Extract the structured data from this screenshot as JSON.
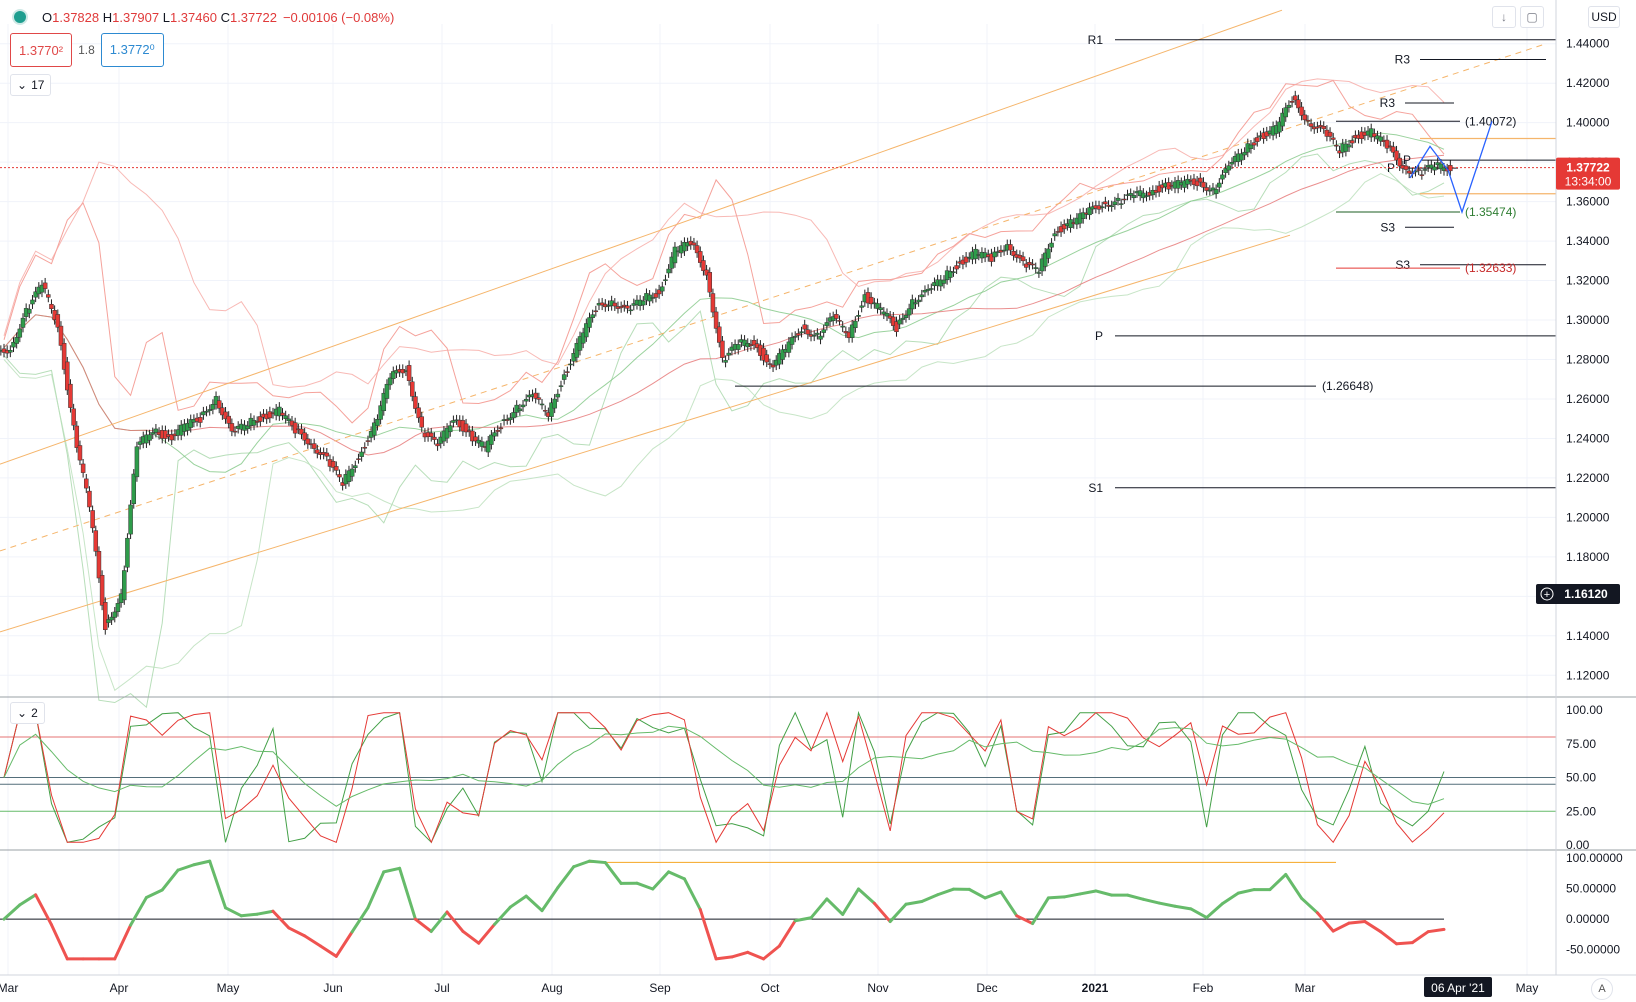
{
  "header": {
    "ohlc_o": "1.37828",
    "ohlc_h": "1.37907",
    "ohlc_l": "1.37460",
    "ohlc_c": "1.37722",
    "change": "−0.00106 (−0.08%)",
    "sell_price": "1.3770²",
    "spread": "1.8",
    "buy_price": "1.3772⁰",
    "indicator_count_main": "17",
    "indicator_count_osc": "2",
    "currency": "USD",
    "auto_label": "A"
  },
  "chart_data": {
    "type": "candlestick",
    "symbol_quote": "USD",
    "current_price": "1.37722",
    "countdown": "13:34:00",
    "crosshair_price": "1.16120",
    "crosshair_date": "06 Apr '21",
    "price_axis": {
      "ylim": [
        1.11,
        1.45
      ],
      "ticks": [
        "1.44000",
        "1.42000",
        "1.40000",
        "1.38000",
        "1.36000",
        "1.34000",
        "1.32000",
        "1.30000",
        "1.28000",
        "1.26000",
        "1.24000",
        "1.22000",
        "1.20000",
        "1.18000",
        "1.16000",
        "1.14000",
        "1.12000"
      ]
    },
    "time_axis": {
      "labels": [
        "Mar",
        "Apr",
        "May",
        "Jun",
        "Jul",
        "Aug",
        "Sep",
        "Oct",
        "Nov",
        "Dec",
        "2021",
        "Feb",
        "Mar",
        "May"
      ]
    },
    "weekly_close": [
      1.286,
      1.304,
      1.318,
      1.298,
      1.245,
      1.205,
      1.145,
      1.16,
      1.235,
      1.245,
      1.24,
      1.246,
      1.25,
      1.261,
      1.242,
      1.248,
      1.251,
      1.254,
      1.244,
      1.238,
      1.229,
      1.217,
      1.231,
      1.246,
      1.271,
      1.276,
      1.244,
      1.236,
      1.251,
      1.242,
      1.235,
      1.247,
      1.256,
      1.261,
      1.253,
      1.272,
      1.29,
      1.306,
      1.31,
      1.304,
      1.311,
      1.314,
      1.335,
      1.339,
      1.324,
      1.279,
      1.288,
      1.289,
      1.276,
      1.285,
      1.296,
      1.292,
      1.301,
      1.293,
      1.312,
      1.305,
      1.296,
      1.31,
      1.314,
      1.322,
      1.329,
      1.334,
      1.331,
      1.339,
      1.328,
      1.325,
      1.345,
      1.349,
      1.354,
      1.359,
      1.36,
      1.363,
      1.365,
      1.368,
      1.369,
      1.37,
      1.366,
      1.377,
      1.387,
      1.393,
      1.397,
      1.412,
      1.401,
      1.395,
      1.386,
      1.393,
      1.395,
      1.388,
      1.378,
      1.374,
      1.378,
      1.3772
    ],
    "levels": [
      {
        "label": "R1",
        "value": 1.442
      },
      {
        "label": "R3",
        "value": 1.432
      },
      {
        "label": "R3",
        "value": 1.41
      },
      {
        "label": "(1.40072)",
        "value": 1.40072
      },
      {
        "label": "P",
        "value": 1.381
      },
      {
        "label": "P",
        "value": 1.377
      },
      {
        "label": "(1.35474)",
        "value": 1.35474
      },
      {
        "label": "S3",
        "value": 1.347
      },
      {
        "label": "S3",
        "value": 1.328
      },
      {
        "label": "(1.32633)",
        "value": 1.32633
      },
      {
        "label": "P",
        "value": 1.292
      },
      {
        "label": "(1.26648)",
        "value": 1.26648
      },
      {
        "label": "S1",
        "value": 1.215
      }
    ],
    "stochastic": {
      "ylim": [
        0,
        100
      ],
      "ticks": [
        "100.00",
        "75.00",
        "50.00",
        "25.00",
        "0.00"
      ],
      "bands": [
        80,
        50,
        45,
        25
      ]
    },
    "momentum": {
      "ylim": [
        -75,
        105
      ],
      "ticks": [
        "100.00000",
        "50.00000",
        "0.00000",
        "-50.00000"
      ]
    }
  }
}
